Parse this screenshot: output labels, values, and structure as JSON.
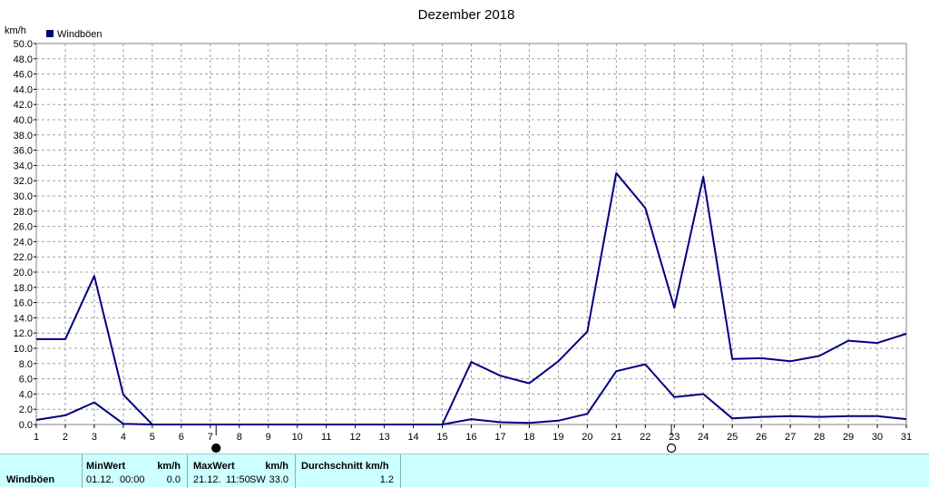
{
  "chart_data": {
    "type": "line",
    "title": "Dezember 2018",
    "ylabel": "km/h",
    "ylim": [
      0,
      50
    ],
    "yticks": [
      "0.0",
      "2.0",
      "4.0",
      "6.0",
      "8.0",
      "10.0",
      "12.0",
      "14.0",
      "16.0",
      "18.0",
      "20.0",
      "22.0",
      "24.0",
      "26.0",
      "28.0",
      "30.0",
      "32.0",
      "34.0",
      "36.0",
      "38.0",
      "40.0",
      "42.0",
      "44.0",
      "46.0",
      "48.0",
      "50.0"
    ],
    "x": [
      1,
      2,
      3,
      4,
      5,
      6,
      7,
      8,
      9,
      10,
      11,
      12,
      13,
      14,
      15,
      16,
      17,
      18,
      19,
      20,
      21,
      22,
      23,
      24,
      25,
      26,
      27,
      28,
      29,
      30,
      31
    ],
    "legend": {
      "position": "top-left",
      "color": "#000080"
    },
    "grid": true,
    "series": [
      {
        "name": "Windböen",
        "color": "#000080",
        "values": [
          11.2,
          11.2,
          19.5,
          3.9,
          0.0,
          null,
          null,
          null,
          null,
          null,
          null,
          null,
          null,
          null,
          0.0,
          8.2,
          6.4,
          5.4,
          8.3,
          12.2,
          33.0,
          28.4,
          15.3,
          32.5,
          8.6,
          8.7,
          8.3,
          9.0,
          11.0,
          10.7,
          11.9
        ]
      },
      {
        "values": [
          0.6,
          1.2,
          2.9,
          0.1,
          0.0,
          null,
          null,
          null,
          null,
          null,
          null,
          null,
          null,
          null,
          0.0,
          0.7,
          0.3,
          0.2,
          0.5,
          1.4,
          7.0,
          7.9,
          3.6,
          4.0,
          0.8,
          1.0,
          1.1,
          1.0,
          1.1,
          1.1,
          0.7
        ]
      }
    ],
    "zero_line_range": [
      5,
      15
    ],
    "moon_phases": [
      {
        "day": 7.2,
        "phase": "new-moon"
      },
      {
        "day": 22.9,
        "phase": "full-moon"
      }
    ]
  },
  "stats": {
    "row_label": "Windböen",
    "min_header": "MinWert",
    "min_unit": "km/h",
    "min_date": "01.12.",
    "min_time": "00:00",
    "min_value": "0.0",
    "max_header": "MaxWert",
    "max_unit": "km/h",
    "max_date": "21.12.",
    "max_time": "11:50",
    "max_dir": "SW",
    "max_value": "33.0",
    "avg_header": "Durchschnitt km/h",
    "avg_value": "1.2"
  }
}
